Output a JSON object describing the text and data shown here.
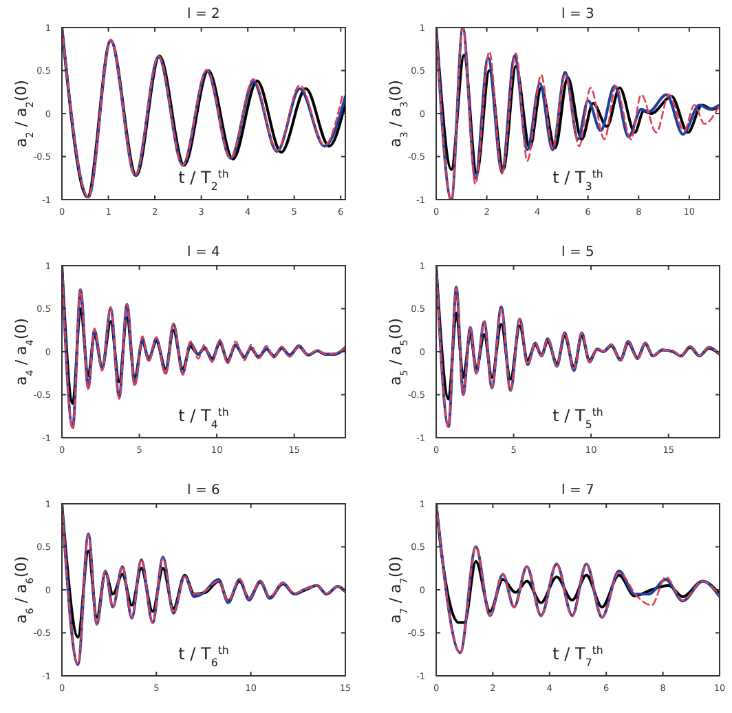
{
  "chart_data": [
    {
      "type": "line",
      "title": "l = 2",
      "xlabel": "t / T$_{2}$$^{th}$",
      "ylabel": "a$_{2}$ / a$_{2}$(0)",
      "xlim": [
        0,
        6.1
      ],
      "xticks": [
        0,
        1,
        2,
        3,
        4,
        5,
        6
      ],
      "ylim": [
        -1,
        1
      ],
      "yticks": [
        -1,
        -0.5,
        0,
        0.5,
        1
      ],
      "series": [
        {
          "color": "#000000",
          "line_style": "solid",
          "x": [
            0,
            0.55,
            1.05,
            1.6,
            2.1,
            2.63,
            3.15,
            3.68,
            4.2,
            4.72,
            5.25,
            5.75,
            6.1
          ],
          "values": [
            1,
            -0.97,
            0.85,
            -0.72,
            0.67,
            -0.6,
            0.5,
            -0.53,
            0.38,
            -0.45,
            0.29,
            -0.38,
            0.12
          ]
        },
        {
          "color": "#2040a0",
          "line_style": "solid",
          "x": [
            0,
            0.57,
            1.05,
            1.58,
            2.08,
            2.6,
            3.12,
            3.63,
            4.12,
            4.63,
            5.12,
            5.65,
            6.1
          ],
          "values": [
            1,
            -0.97,
            0.85,
            -0.72,
            0.66,
            -0.6,
            0.5,
            -0.52,
            0.37,
            -0.44,
            0.29,
            -0.38,
            0.2
          ]
        },
        {
          "color": "#e04050",
          "line_style": "dashed",
          "x": [
            0,
            0.57,
            1.05,
            1.58,
            2.08,
            2.6,
            3.12,
            3.63,
            4.12,
            4.63,
            5.12,
            5.65,
            6.05
          ],
          "values": [
            1,
            -0.97,
            0.86,
            -0.72,
            0.67,
            -0.6,
            0.51,
            -0.52,
            0.4,
            -0.43,
            0.33,
            -0.37,
            0.24
          ]
        }
      ]
    },
    {
      "type": "line",
      "title": "l = 3",
      "xlabel": "t / T$_{3}$$^{th}$",
      "ylabel": "a$_{3}$ / a$_{3}$(0)",
      "xlim": [
        0,
        11.2
      ],
      "xticks": [
        0,
        2,
        4,
        6,
        8,
        10
      ],
      "ylim": [
        -1,
        1
      ],
      "yticks": [
        -1,
        -0.5,
        0,
        0.5,
        1
      ],
      "series": [
        {
          "color": "#000000",
          "line_style": "solid",
          "x": [
            0,
            0.6,
            1.1,
            1.6,
            2.1,
            2.65,
            3.15,
            3.7,
            4.15,
            4.7,
            5.2,
            5.75,
            6.2,
            6.75,
            7.25,
            7.85,
            8.2,
            8.5,
            9.3,
            9.95,
            10.5,
            10.9,
            11.2
          ],
          "values": [
            1,
            -0.65,
            0.68,
            -0.7,
            0.5,
            -0.65,
            0.55,
            -0.4,
            0.3,
            -0.4,
            0.42,
            -0.3,
            0.12,
            -0.15,
            0.3,
            -0.22,
            0.03,
            0,
            0.2,
            -0.22,
            0.1,
            0.05,
            0.08
          ]
        },
        {
          "color": "#2040a0",
          "line_style": "solid",
          "x": [
            0,
            0.6,
            1.05,
            1.55,
            2.05,
            2.6,
            3.1,
            3.6,
            4.1,
            4.6,
            5.1,
            5.6,
            6,
            6.5,
            7.05,
            7.6,
            8.1,
            8.4,
            9.1,
            9.75,
            10.4,
            10.8,
            11.2
          ],
          "values": [
            1,
            -1,
            1,
            -0.75,
            0.65,
            -0.68,
            0.67,
            -0.42,
            0.35,
            -0.42,
            0.48,
            -0.3,
            0.15,
            -0.2,
            0.32,
            -0.27,
            0.05,
            0.02,
            0.22,
            -0.24,
            0.1,
            0.05,
            0.1
          ]
        },
        {
          "color": "#e04050",
          "line_style": "dashed",
          "x": [
            0,
            0.6,
            1.05,
            1.55,
            2.1,
            2.6,
            3.15,
            3.6,
            4.15,
            4.6,
            5.1,
            5.65,
            6.1,
            6.65,
            7.1,
            7.7,
            8.1,
            8.7,
            9.2,
            9.8,
            10.2,
            10.6,
            11.2
          ],
          "values": [
            1,
            -1,
            1,
            -0.82,
            0.72,
            -0.7,
            0.7,
            -0.55,
            0.45,
            -0.4,
            0.45,
            -0.38,
            0.3,
            -0.3,
            0.32,
            -0.3,
            0.22,
            -0.22,
            0.22,
            -0.2,
            0.1,
            -0.12,
            0.1
          ]
        }
      ]
    },
    {
      "type": "line",
      "title": "l = 4",
      "xlabel": "t / T$_{4}$$^{th}$",
      "ylabel": "a$_{4}$ / a$_{4}$(0)",
      "xlim": [
        0,
        18.3
      ],
      "xticks": [
        0,
        5,
        10,
        15
      ],
      "ylim": [
        -1,
        1
      ],
      "yticks": [
        -1,
        -0.5,
        0,
        0.5,
        1
      ],
      "series": [
        {
          "color": "#000000",
          "line_style": "solid",
          "x": [
            0,
            0.7,
            1.2,
            1.7,
            2.1,
            2.6,
            3.15,
            3.7,
            4.2,
            4.7,
            5.2,
            5.6,
            6.1,
            6.7,
            7.2,
            7.8,
            8.3,
            8.8,
            9.2,
            9.7,
            10.2,
            10.7,
            11.2,
            11.8,
            12.2,
            12.7,
            13.2,
            13.7,
            14.2,
            14.7,
            15.3,
            15.9,
            16.5,
            17,
            17.6,
            18.3
          ],
          "values": [
            1,
            -0.6,
            0.5,
            -0.28,
            0.2,
            -0.18,
            0.35,
            -0.35,
            0.4,
            -0.3,
            0.12,
            -0.08,
            0.12,
            -0.2,
            0.25,
            -0.2,
            0.06,
            -0.03,
            0.04,
            -0.08,
            0.1,
            -0.1,
            0.07,
            -0.06,
            0.04,
            -0.06,
            0.03,
            -0.05,
            0.04,
            -0.04,
            0.06,
            -0.04,
            0.01,
            -0.03,
            -0.03,
            0.04
          ]
        },
        {
          "color": "#2040a0",
          "line_style": "solid",
          "x": [
            0,
            0.7,
            1.2,
            1.7,
            2.1,
            2.6,
            3.15,
            3.7,
            4.2,
            4.7,
            5.2,
            5.6,
            6.1,
            6.7,
            7.2,
            7.8,
            8.3,
            8.8,
            9.2,
            9.7,
            10.2,
            10.7,
            11.2,
            11.8,
            12.2,
            12.7,
            13.2,
            13.7,
            14.2,
            14.7,
            15.3,
            15.9,
            16.5,
            17,
            17.6,
            18.3
          ],
          "values": [
            1,
            -0.88,
            0.72,
            -0.42,
            0.25,
            -0.2,
            0.5,
            -0.53,
            0.55,
            -0.38,
            0.15,
            -0.1,
            0.15,
            -0.25,
            0.32,
            -0.25,
            0.1,
            -0.03,
            0.05,
            -0.1,
            0.12,
            -0.12,
            0.08,
            -0.07,
            0.05,
            -0.07,
            0.04,
            -0.06,
            0.05,
            -0.05,
            0.07,
            -0.04,
            0.01,
            -0.03,
            -0.03,
            0.05
          ]
        },
        {
          "color": "#e04050",
          "line_style": "dashed",
          "x": [
            0,
            0.7,
            1.2,
            1.7,
            2.1,
            2.6,
            3.15,
            3.7,
            4.2,
            4.7,
            5.2,
            5.6,
            6.1,
            6.7,
            7.2,
            7.8,
            8.3,
            8.8,
            9.2,
            9.7,
            10.2,
            10.7,
            11.2,
            11.8,
            12.2,
            12.7,
            13.2,
            13.7,
            14.2,
            14.7,
            15.3,
            15.9,
            16.5,
            17,
            17.6,
            18.3
          ],
          "values": [
            1,
            -0.9,
            0.72,
            -0.44,
            0.27,
            -0.22,
            0.52,
            -0.55,
            0.56,
            -0.4,
            0.18,
            -0.12,
            0.17,
            -0.27,
            0.33,
            -0.27,
            0.12,
            -0.08,
            0.08,
            -0.12,
            0.14,
            -0.14,
            0.12,
            -0.1,
            0.08,
            -0.08,
            0.07,
            -0.07,
            0.06,
            -0.06,
            0.06,
            -0.04,
            0.02,
            -0.03,
            -0.02,
            0.04
          ]
        }
      ]
    },
    {
      "type": "line",
      "title": "l = 5",
      "xlabel": "t / T$_{5}$$^{th}$",
      "ylabel": "a$_{5}$ / a$_{5}$(0)",
      "xlim": [
        0,
        18.3
      ],
      "xticks": [
        0,
        5,
        10,
        15
      ],
      "ylim": [
        -1,
        1
      ],
      "yticks": [
        -1,
        -0.5,
        0,
        0.5,
        1
      ],
      "series": [
        {
          "color": "#000000",
          "line_style": "solid",
          "x": [
            0,
            0.8,
            1.3,
            1.75,
            2.2,
            2.6,
            3.1,
            3.6,
            4.2,
            4.8,
            5.4,
            5.9,
            6.4,
            6.8,
            7.2,
            7.8,
            8.3,
            8.9,
            9.4,
            9.9,
            10.4,
            10.8,
            11.3,
            11.9,
            12.4,
            13,
            13.5,
            14,
            14.6,
            15.3,
            15.8,
            16.4,
            17,
            17.6,
            18.3
          ],
          "values": [
            1,
            -0.55,
            0.45,
            -0.3,
            0.2,
            -0.2,
            0.2,
            -0.3,
            0.32,
            -0.32,
            0.3,
            -0.1,
            0.08,
            -0.04,
            0.12,
            -0.14,
            0.18,
            -0.18,
            0.18,
            -0.1,
            0.03,
            0,
            0.07,
            -0.09,
            0.1,
            -0.07,
            0.09,
            -0.05,
            0.02,
            0,
            -0.05,
            0.05,
            -0.05,
            0.04,
            -0.03
          ]
        },
        {
          "color": "#2040a0",
          "line_style": "solid",
          "x": [
            0,
            0.8,
            1.3,
            1.75,
            2.2,
            2.6,
            3.1,
            3.6,
            4.2,
            4.8,
            5.4,
            5.9,
            6.4,
            6.8,
            7.2,
            7.8,
            8.3,
            8.9,
            9.4,
            9.9,
            10.4,
            10.8,
            11.3,
            11.9,
            12.4,
            13,
            13.5,
            14,
            14.6,
            15.3,
            15.8,
            16.4,
            17,
            17.6,
            18.3
          ],
          "values": [
            1,
            -0.87,
            0.75,
            -0.5,
            0.28,
            -0.25,
            0.35,
            -0.42,
            0.52,
            -0.45,
            0.38,
            -0.15,
            0.1,
            -0.05,
            0.15,
            -0.17,
            0.22,
            -0.22,
            0.22,
            -0.12,
            0.03,
            0,
            0.08,
            -0.1,
            0.12,
            -0.08,
            0.1,
            -0.05,
            0.02,
            0,
            -0.05,
            0.06,
            -0.05,
            0.05,
            -0.03
          ]
        },
        {
          "color": "#e04050",
          "line_style": "dashed",
          "x": [
            0,
            0.8,
            1.3,
            1.75,
            2.2,
            2.6,
            3.1,
            3.6,
            4.2,
            4.8,
            5.4,
            5.9,
            6.4,
            6.8,
            7.2,
            7.8,
            8.3,
            8.9,
            9.4,
            9.9,
            10.4,
            10.8,
            11.3,
            11.9,
            12.4,
            13,
            13.5,
            14,
            14.6,
            15.3,
            15.8,
            16.4,
            17,
            17.6,
            18.3
          ],
          "values": [
            1,
            -0.87,
            0.74,
            -0.5,
            0.28,
            -0.25,
            0.35,
            -0.42,
            0.5,
            -0.45,
            0.38,
            -0.15,
            0.1,
            -0.05,
            0.15,
            -0.17,
            0.22,
            -0.2,
            0.22,
            -0.12,
            0.04,
            0,
            0.08,
            -0.1,
            0.12,
            -0.09,
            0.1,
            -0.05,
            0.02,
            0.01,
            -0.05,
            0.06,
            -0.05,
            0.05,
            -0.03
          ]
        }
      ]
    },
    {
      "type": "line",
      "title": "l = 6",
      "xlabel": "t / T$_{6}$$^{th}$",
      "ylabel": "a$_{6}$ / a$_{6}$(0)",
      "xlim": [
        0,
        15
      ],
      "xticks": [
        0,
        5,
        10,
        15
      ],
      "ylim": [
        -1,
        1
      ],
      "yticks": [
        -1,
        -0.5,
        0,
        0.5,
        1
      ],
      "series": [
        {
          "color": "#000000",
          "line_style": "solid",
          "x": [
            0,
            0.85,
            1.4,
            1.85,
            2.3,
            2.7,
            3.2,
            3.7,
            4.2,
            4.8,
            5.35,
            5.9,
            6.5,
            7,
            7.6,
            8.3,
            8.8,
            9.4,
            9.9,
            10.5,
            11,
            11.7,
            12.3,
            12.8,
            13.5,
            14,
            14.6,
            15
          ],
          "values": [
            1,
            -0.55,
            0.45,
            -0.32,
            0.2,
            -0.05,
            0.18,
            -0.18,
            0.25,
            -0.25,
            0.25,
            -0.22,
            0.17,
            -0.05,
            -0.03,
            0.1,
            -0.13,
            0.1,
            -0.1,
            0.09,
            -0.09,
            0.07,
            -0.05,
            -0.01,
            0.05,
            -0.05,
            0.04,
            -0.02
          ]
        },
        {
          "color": "#2040a0",
          "line_style": "solid",
          "x": [
            0,
            0.85,
            1.4,
            1.85,
            2.3,
            2.7,
            3.2,
            3.7,
            4.2,
            4.8,
            5.35,
            5.9,
            6.5,
            7,
            7.4,
            8.3,
            8.8,
            9.4,
            9.9,
            10.5,
            11,
            11.7,
            12.3,
            12.8,
            13.5,
            14,
            14.6,
            15
          ],
          "values": [
            1,
            -0.87,
            0.65,
            -0.4,
            0.22,
            -0.2,
            0.27,
            -0.33,
            0.35,
            -0.38,
            0.38,
            -0.27,
            0.16,
            -0.08,
            -0.05,
            0.12,
            -0.15,
            0.12,
            -0.12,
            0.1,
            -0.1,
            0.08,
            -0.05,
            0,
            0.05,
            -0.05,
            0.04,
            -0.02
          ]
        },
        {
          "color": "#e04050",
          "line_style": "dashed",
          "x": [
            0,
            0.85,
            1.4,
            1.85,
            2.3,
            2.7,
            3.2,
            3.7,
            4.2,
            4.8,
            5.35,
            5.9,
            6.5,
            7,
            7.4,
            8.3,
            8.8,
            9.4,
            9.9,
            10.5,
            11,
            11.7,
            12.3,
            12.8,
            13.5,
            14,
            14.6,
            15
          ],
          "values": [
            1,
            -0.86,
            0.64,
            -0.4,
            0.22,
            -0.2,
            0.27,
            -0.32,
            0.35,
            -0.38,
            0.37,
            -0.27,
            0.15,
            -0.05,
            -0.04,
            0.1,
            -0.13,
            0.13,
            -0.1,
            0.1,
            -0.08,
            0.08,
            -0.04,
            0,
            0.05,
            -0.04,
            0.04,
            -0.02
          ]
        }
      ]
    },
    {
      "type": "line",
      "title": "l = 7",
      "xlabel": "t / T$_{7}$$^{th}$",
      "ylabel": "a$_{7}$ / a$_{7}$(0)",
      "xlim": [
        0,
        10
      ],
      "xticks": [
        0,
        2,
        4,
        6,
        8,
        10
      ],
      "ylim": [
        -1,
        1
      ],
      "yticks": [
        -1,
        -0.5,
        0,
        0.5,
        1
      ],
      "series": [
        {
          "color": "#000000",
          "line_style": "solid",
          "x": [
            0,
            0.2,
            0.8,
            1,
            1.4,
            1.9,
            2.35,
            2.8,
            3.2,
            3.7,
            4.25,
            4.8,
            5.3,
            5.85,
            6.45,
            7,
            7.6,
            8.2,
            8.7,
            9.4,
            10
          ],
          "values": [
            1,
            0.4,
            -0.38,
            -0.38,
            0.33,
            -0.25,
            0.12,
            -0.03,
            0.1,
            -0.15,
            0.15,
            -0.12,
            0.17,
            -0.2,
            0.17,
            -0.07,
            0,
            0.05,
            -0.08,
            0.1,
            -0.05
          ]
        },
        {
          "color": "#2040a0",
          "line_style": "solid",
          "x": [
            0,
            0.85,
            1.4,
            1.9,
            2.35,
            2.75,
            3.2,
            3.7,
            4.25,
            4.8,
            5.3,
            5.85,
            6.45,
            7,
            7.5,
            8.1,
            8.7,
            9.4,
            10
          ],
          "values": [
            1,
            -0.73,
            0.5,
            -0.3,
            0.18,
            -0.2,
            0.27,
            -0.3,
            0.3,
            -0.3,
            0.3,
            -0.32,
            0.22,
            -0.05,
            -0.05,
            0.12,
            -0.13,
            0.1,
            -0.08
          ]
        },
        {
          "color": "#e04050",
          "line_style": "dashed",
          "x": [
            0,
            0.85,
            1.4,
            1.9,
            2.35,
            2.75,
            3.2,
            3.7,
            4.25,
            4.8,
            5.3,
            5.85,
            6.45,
            7.1,
            7.6,
            8.1,
            8.7,
            9.4,
            10
          ],
          "values": [
            1,
            -0.74,
            0.5,
            -0.3,
            0.18,
            -0.2,
            0.27,
            -0.3,
            0.3,
            -0.31,
            0.3,
            -0.32,
            0.2,
            -0.08,
            -0.18,
            0.15,
            -0.12,
            0.1,
            -0.07
          ]
        }
      ]
    }
  ]
}
